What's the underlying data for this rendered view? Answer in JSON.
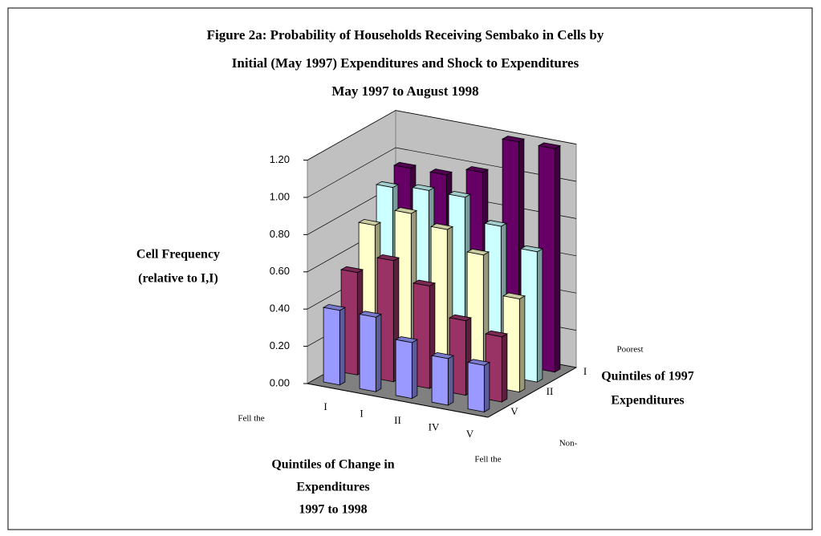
{
  "chart_data": {
    "type": "bar3d",
    "title": [
      "Figure 2a: Probability of Households Receiving Sembako in Cells by",
      "Initial (May 1997) Expenditures and Shock to Expenditures",
      "May 1997 to August 1998"
    ],
    "ylabel": [
      "Cell Frequency",
      "(relative to I,I)"
    ],
    "xlabel": [
      "Quintiles of Change in",
      "Expenditures",
      "1997 to 1998"
    ],
    "zlabel": [
      "Quintiles of 1997",
      "Expenditures"
    ],
    "annotations": [
      "Fell the",
      "Fell the",
      "Poorest",
      "Non-"
    ],
    "categories": [
      "I",
      "I",
      "II",
      "IV",
      "V"
    ],
    "depth_categories": [
      "V",
      null,
      "II",
      null,
      "I"
    ],
    "series": [
      {
        "color": "#9999ff",
        "values": [
          0.4,
          0.4,
          0.3,
          0.25,
          0.25
        ]
      },
      {
        "color": "#993366",
        "values": [
          0.55,
          0.65,
          0.55,
          0.4,
          0.35
        ]
      },
      {
        "color": "#ffffcc",
        "values": [
          0.75,
          0.85,
          0.8,
          0.7,
          0.5
        ]
      },
      {
        "color": "#ccffff",
        "values": [
          0.9,
          0.92,
          0.92,
          0.8,
          0.7
        ]
      },
      {
        "color": "#660066",
        "values": [
          0.95,
          0.95,
          1.0,
          1.2,
          1.2
        ]
      }
    ],
    "ylim": [
      0,
      1.2
    ],
    "yticks": [
      {
        "value": 0,
        "label": "0.00"
      },
      {
        "value": 0.2,
        "label": "0.20"
      },
      {
        "value": 0.4,
        "label": "0.40"
      },
      {
        "value": 0.6,
        "label": "0.60"
      },
      {
        "value": 0.8,
        "label": "0.80"
      },
      {
        "value": 1.0,
        "label": "1.00"
      },
      {
        "value": 1.2,
        "label": "1.20"
      }
    ],
    "grid": true
  }
}
